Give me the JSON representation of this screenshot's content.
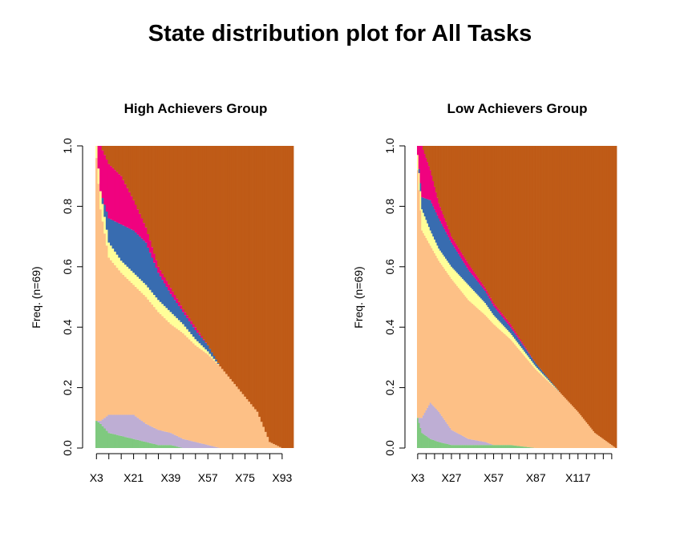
{
  "main_title": "State distribution plot for All Tasks",
  "colors": {
    "green": "#7fc97f",
    "lavender": "#beaed4",
    "peach": "#fdc086",
    "yellow": "#ffff99",
    "blue": "#386cb0",
    "pink": "#f0027f",
    "brown": "#bf5b17"
  },
  "chart_data": [
    {
      "type": "area",
      "title": "High Achievers Group",
      "ylabel": "Freq. (n=69)",
      "ylim": [
        0,
        1
      ],
      "yticks": [
        "0.0",
        "0.2",
        "0.4",
        "0.6",
        "0.8",
        "1.0"
      ],
      "x_start": 3,
      "x_end": 98,
      "xtick_labels": [
        "X3",
        "X21",
        "X39",
        "X57",
        "X75",
        "X93"
      ],
      "minor_tick_step": 6,
      "states": [
        "green",
        "lavender",
        "peach",
        "yellow",
        "blue",
        "pink",
        "brown"
      ],
      "profile": [
        {
          "x": 3,
          "green": 0.09,
          "lavender": 0.0,
          "peach": 0.87,
          "yellow": 0.04,
          "blue": 0.0,
          "pink": 0.0
        },
        {
          "x": 5,
          "green": 0.08,
          "lavender": 0.01,
          "peach": 0.7,
          "yellow": 0.06,
          "blue": 0.0,
          "pink": 0.15
        },
        {
          "x": 9,
          "green": 0.05,
          "lavender": 0.06,
          "peach": 0.52,
          "yellow": 0.05,
          "blue": 0.08,
          "pink": 0.18
        },
        {
          "x": 15,
          "green": 0.04,
          "lavender": 0.07,
          "peach": 0.47,
          "yellow": 0.04,
          "blue": 0.12,
          "pink": 0.16
        },
        {
          "x": 21,
          "green": 0.03,
          "lavender": 0.08,
          "peach": 0.43,
          "yellow": 0.04,
          "blue": 0.14,
          "pink": 0.1
        },
        {
          "x": 27,
          "green": 0.02,
          "lavender": 0.06,
          "peach": 0.42,
          "yellow": 0.04,
          "blue": 0.14,
          "pink": 0.05
        },
        {
          "x": 33,
          "green": 0.01,
          "lavender": 0.05,
          "peach": 0.39,
          "yellow": 0.04,
          "blue": 0.09,
          "pink": 0.02
        },
        {
          "x": 39,
          "green": 0.01,
          "lavender": 0.04,
          "peach": 0.36,
          "yellow": 0.04,
          "blue": 0.06,
          "pink": 0.02
        },
        {
          "x": 45,
          "green": 0.0,
          "lavender": 0.03,
          "peach": 0.35,
          "yellow": 0.03,
          "blue": 0.04,
          "pink": 0.01
        },
        {
          "x": 51,
          "green": 0.0,
          "lavender": 0.02,
          "peach": 0.32,
          "yellow": 0.02,
          "blue": 0.03,
          "pink": 0.01
        },
        {
          "x": 57,
          "green": 0.0,
          "lavender": 0.01,
          "peach": 0.3,
          "yellow": 0.01,
          "blue": 0.02,
          "pink": 0.0
        },
        {
          "x": 63,
          "green": 0.0,
          "lavender": 0.0,
          "peach": 0.27,
          "yellow": 0.0,
          "blue": 0.0,
          "pink": 0.0
        },
        {
          "x": 69,
          "green": 0.0,
          "lavender": 0.0,
          "peach": 0.22,
          "yellow": 0.0,
          "blue": 0.0,
          "pink": 0.0
        },
        {
          "x": 75,
          "green": 0.0,
          "lavender": 0.0,
          "peach": 0.17,
          "yellow": 0.0,
          "blue": 0.0,
          "pink": 0.0
        },
        {
          "x": 81,
          "green": 0.0,
          "lavender": 0.0,
          "peach": 0.12,
          "yellow": 0.0,
          "blue": 0.0,
          "pink": 0.0
        },
        {
          "x": 87,
          "green": 0.0,
          "lavender": 0.0,
          "peach": 0.02,
          "yellow": 0.0,
          "blue": 0.0,
          "pink": 0.0
        },
        {
          "x": 93,
          "green": 0.0,
          "lavender": 0.0,
          "peach": 0.0,
          "yellow": 0.0,
          "blue": 0.0,
          "pink": 0.0
        },
        {
          "x": 98,
          "green": 0.0,
          "lavender": 0.0,
          "peach": 0.0,
          "yellow": 0.0,
          "blue": 0.0,
          "pink": 0.0
        }
      ]
    },
    {
      "type": "area",
      "title": "Low Achievers Group",
      "ylabel": "Freq. (n=69)",
      "ylim": [
        0,
        1
      ],
      "yticks": [
        "0.0",
        "0.2",
        "0.4",
        "0.6",
        "0.8",
        "1.0"
      ],
      "x_start": 3,
      "x_end": 144,
      "xtick_labels": [
        "X3",
        "X27",
        "X57",
        "X87",
        "X117"
      ],
      "minor_tick_step": 6,
      "states": [
        "green",
        "lavender",
        "peach",
        "yellow",
        "blue",
        "pink",
        "brown"
      ],
      "profile": [
        {
          "x": 3,
          "green": 0.1,
          "lavender": 0.0,
          "peach": 0.82,
          "yellow": 0.05,
          "blue": 0.0,
          "pink": 0.03
        },
        {
          "x": 6,
          "green": 0.05,
          "lavender": 0.05,
          "peach": 0.62,
          "yellow": 0.07,
          "blue": 0.04,
          "pink": 0.17
        },
        {
          "x": 12,
          "green": 0.03,
          "lavender": 0.12,
          "peach": 0.52,
          "yellow": 0.05,
          "blue": 0.1,
          "pink": 0.1
        },
        {
          "x": 18,
          "green": 0.02,
          "lavender": 0.1,
          "peach": 0.5,
          "yellow": 0.04,
          "blue": 0.1,
          "pink": 0.05
        },
        {
          "x": 27,
          "green": 0.01,
          "lavender": 0.05,
          "peach": 0.5,
          "yellow": 0.04,
          "blue": 0.08,
          "pink": 0.02
        },
        {
          "x": 39,
          "green": 0.01,
          "lavender": 0.02,
          "peach": 0.46,
          "yellow": 0.05,
          "blue": 0.05,
          "pink": 0.02
        },
        {
          "x": 51,
          "green": 0.01,
          "lavender": 0.01,
          "peach": 0.42,
          "yellow": 0.04,
          "blue": 0.04,
          "pink": 0.01
        },
        {
          "x": 57,
          "green": 0.01,
          "lavender": 0.0,
          "peach": 0.4,
          "yellow": 0.03,
          "blue": 0.03,
          "pink": 0.01
        },
        {
          "x": 69,
          "green": 0.01,
          "lavender": 0.0,
          "peach": 0.35,
          "yellow": 0.02,
          "blue": 0.02,
          "pink": 0.01
        },
        {
          "x": 87,
          "green": 0.0,
          "lavender": 0.0,
          "peach": 0.26,
          "yellow": 0.01,
          "blue": 0.01,
          "pink": 0.0
        },
        {
          "x": 105,
          "green": 0.0,
          "lavender": 0.0,
          "peach": 0.18,
          "yellow": 0.0,
          "blue": 0.0,
          "pink": 0.0
        },
        {
          "x": 117,
          "green": 0.0,
          "lavender": 0.0,
          "peach": 0.12,
          "yellow": 0.0,
          "blue": 0.0,
          "pink": 0.0
        },
        {
          "x": 129,
          "green": 0.0,
          "lavender": 0.0,
          "peach": 0.05,
          "yellow": 0.0,
          "blue": 0.0,
          "pink": 0.0
        },
        {
          "x": 144,
          "green": 0.0,
          "lavender": 0.0,
          "peach": 0.0,
          "yellow": 0.0,
          "blue": 0.0,
          "pink": 0.0
        }
      ]
    }
  ]
}
